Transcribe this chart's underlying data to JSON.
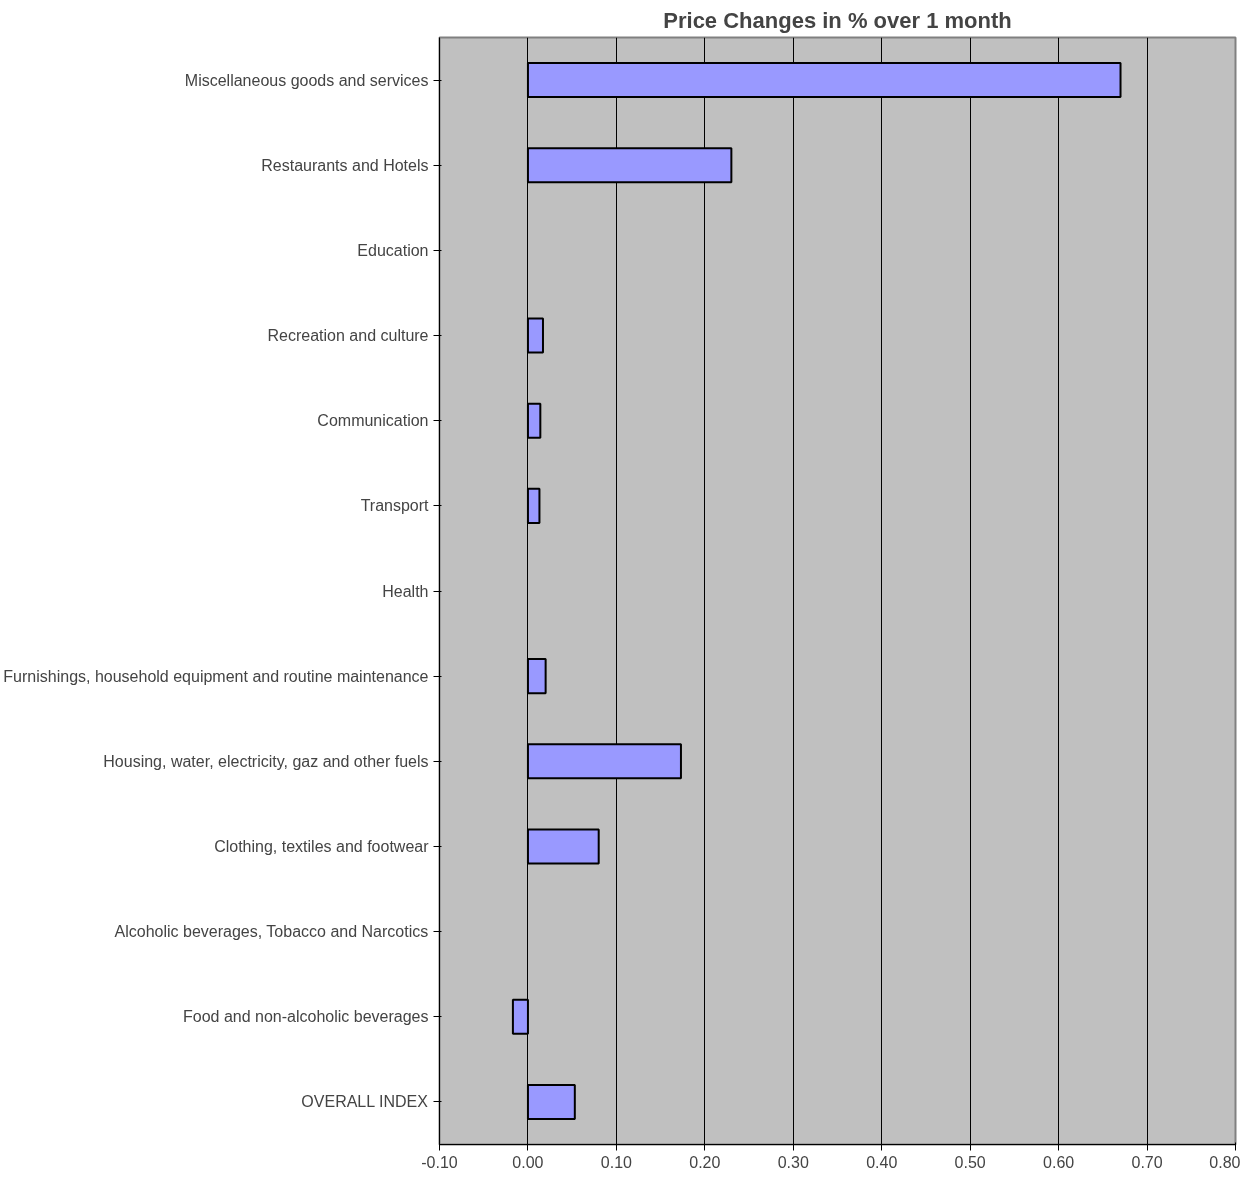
{
  "chart_data": {
    "type": "bar",
    "orientation": "horizontal",
    "title": "Price Changes in % over 1 month",
    "categories": [
      "Miscellaneous goods and services",
      "Restaurants and Hotels",
      "Education",
      "Recreation and culture",
      "Communication",
      "Transport",
      "Health",
      "Furnishings, household equipment and routine maintenance",
      "Housing, water, electricity, gaz and other fuels",
      "Clothing, textiles and footwear",
      "Alcoholic beverages, Tobacco and Narcotics",
      "Food and non-alcoholic beverages",
      "OVERALL INDEX"
    ],
    "values": [
      0.67,
      0.23,
      0,
      0.017,
      0.014,
      0.013,
      0,
      0.02,
      0.173,
      0.08,
      0,
      -0.017,
      0.053
    ],
    "color": "#9999ff",
    "xlim": [
      -0.1,
      0.8
    ],
    "xticks": [
      {
        "value": -0.1,
        "label": "-0.10"
      },
      {
        "value": 0,
        "label": "0.00"
      },
      {
        "value": 0.1,
        "label": "0.10"
      },
      {
        "value": 0.2,
        "label": "0.20"
      },
      {
        "value": 0.3,
        "label": "0.30"
      },
      {
        "value": 0.4,
        "label": "0.40"
      },
      {
        "value": 0.5,
        "label": "0.50"
      },
      {
        "value": 0.6,
        "label": "0.60"
      },
      {
        "value": 0.7,
        "label": "0.70"
      },
      {
        "value": 0.8,
        "label": "0.80"
      }
    ],
    "grid": "x"
  }
}
